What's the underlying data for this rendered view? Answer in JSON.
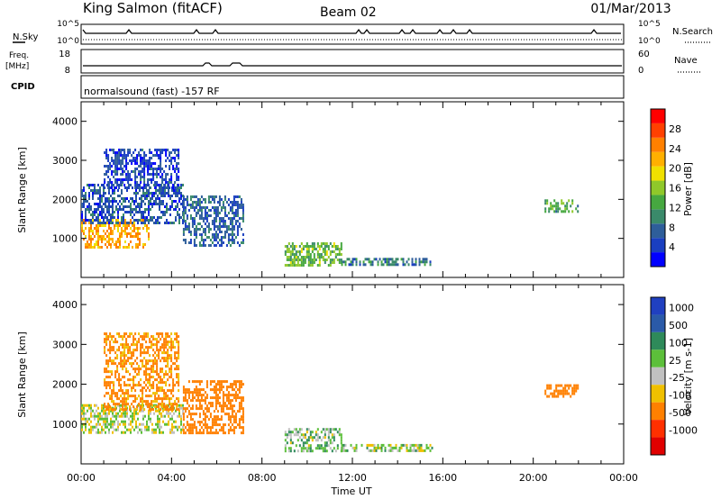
{
  "header": {
    "station": "King Salmon (fitACF)",
    "beam": "Beam 02",
    "date": "01/Mar/2013"
  },
  "top_panels": {
    "nsky_label": "N.Sky",
    "nsearch_label": "N.Search",
    "noise_ticks": [
      "10^5",
      "10^0"
    ],
    "freq_label_line1": "Freq.",
    "freq_label_line2": "[MHz]",
    "freq_ticks": [
      "18",
      "8"
    ],
    "nave_label": "Nave",
    "nave_ticks": [
      "60",
      "0"
    ],
    "cpid_label": "CPID",
    "cpid_text": "normalsound (fast) -157 RF"
  },
  "chart_data": [
    {
      "type": "heatmap",
      "title": "",
      "xlabel": "",
      "ylabel": "Slant Range [km]",
      "xlim": [
        0,
        24
      ],
      "ylim": [
        0,
        4500
      ],
      "x_ticks": [
        "00:00",
        "04:00",
        "08:00",
        "12:00",
        "16:00",
        "20:00",
        "00:00"
      ],
      "y_ticks": [
        1000,
        2000,
        3000,
        4000
      ],
      "colorbar": {
        "label": "Power [dB]",
        "ticks": [
          "4",
          "8",
          "12",
          "16",
          "20",
          "24",
          "28"
        ],
        "colors": [
          "#0000ff",
          "#1a3fc0",
          "#2e5e9a",
          "#3a8a6a",
          "#46a840",
          "#8fc82a",
          "#f0e000",
          "#ffb000",
          "#ff8000",
          "#ff4000",
          "#ff0000"
        ]
      },
      "regions": [
        {
          "t0": 0.0,
          "t1": 3.0,
          "r0": 800,
          "r1": 1500,
          "value": 22
        },
        {
          "t0": 0.0,
          "t1": 4.5,
          "r0": 1400,
          "r1": 2400,
          "value": 6
        },
        {
          "t0": 1.0,
          "t1": 4.3,
          "r0": 2300,
          "r1": 3300,
          "value": 5
        },
        {
          "t0": 4.5,
          "t1": 7.2,
          "r0": 800,
          "r1": 2100,
          "value": 7
        },
        {
          "t0": 9.0,
          "t1": 11.5,
          "r0": 300,
          "r1": 900,
          "value": 14
        },
        {
          "t0": 11.5,
          "t1": 15.5,
          "r0": 300,
          "r1": 500,
          "value": 9
        },
        {
          "t0": 20.5,
          "t1": 22.0,
          "r0": 1700,
          "r1": 2000,
          "value": 12
        }
      ]
    },
    {
      "type": "heatmap",
      "title": "",
      "xlabel": "Time UT",
      "ylabel": "Slant Range [km]",
      "xlim": [
        0,
        24
      ],
      "ylim": [
        0,
        4500
      ],
      "x_ticks": [
        "00:00",
        "04:00",
        "08:00",
        "12:00",
        "16:00",
        "20:00",
        "00:00"
      ],
      "y_ticks": [
        1000,
        2000,
        3000,
        4000
      ],
      "colorbar": {
        "label": "Velocity [m s-1]",
        "ticks": [
          "1000",
          "500",
          "100",
          "25",
          "-25",
          "-100",
          "-500",
          "-1000"
        ],
        "colors": [
          "#2040c0",
          "#2a5aa8",
          "#2e8a5a",
          "#5cbf3a",
          "#c0c0c0",
          "#f0c000",
          "#ff8000",
          "#ff3000",
          "#e00000"
        ]
      },
      "regions": [
        {
          "t0": 0.0,
          "t1": 4.5,
          "r0": 800,
          "r1": 1500,
          "value": 0
        },
        {
          "t0": 1.0,
          "t1": 4.3,
          "r0": 1400,
          "r1": 3300,
          "value": -150
        },
        {
          "t0": 4.5,
          "t1": 7.2,
          "r0": 800,
          "r1": 2100,
          "value": -300
        },
        {
          "t0": 9.0,
          "t1": 11.5,
          "r0": 300,
          "r1": 900,
          "value": 60
        },
        {
          "t0": 11.5,
          "t1": 15.5,
          "r0": 300,
          "r1": 500,
          "value": 30
        },
        {
          "t0": 20.5,
          "t1": 22.0,
          "r0": 1700,
          "r1": 2000,
          "value": -300
        }
      ]
    }
  ]
}
